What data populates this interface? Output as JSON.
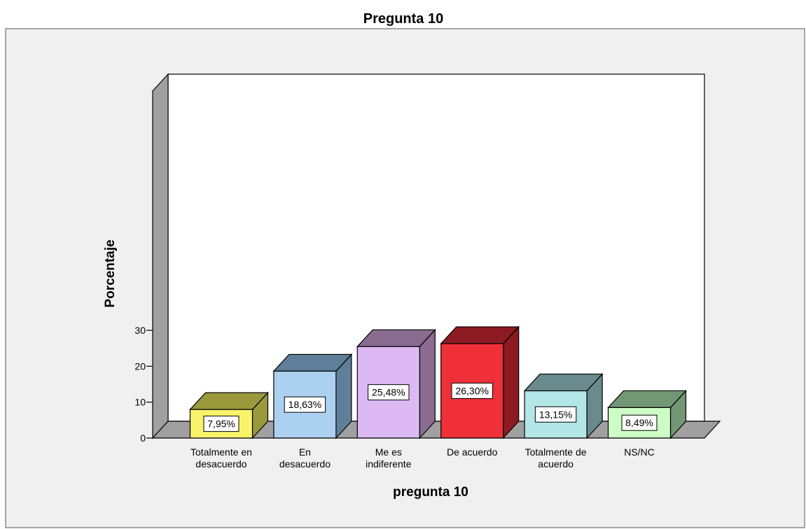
{
  "chart_data": {
    "type": "bar",
    "title": "Pregunta 10",
    "xlabel": "pregunta 10",
    "ylabel": "Porcentaje",
    "ylim": [
      0,
      30
    ],
    "yticks": [
      0,
      10,
      20,
      30
    ],
    "categories": [
      [
        "Totalmente en",
        "desacuerdo"
      ],
      [
        "En",
        "desacuerdo"
      ],
      [
        "Me es",
        "indiferente"
      ],
      [
        "De acuerdo"
      ],
      [
        "Totalmente de",
        "acuerdo"
      ],
      [
        "NS/NC"
      ]
    ],
    "values": [
      7.95,
      18.63,
      25.48,
      26.3,
      13.15,
      8.49
    ],
    "data_labels": [
      "7,95%",
      "18,63%",
      "25,48%",
      "26,30%",
      "13,15%",
      "8,49%"
    ],
    "colors": {
      "front": [
        "#f8f36a",
        "#acd0f0",
        "#dcb9f3",
        "#f03038",
        "#b3e6e6",
        "#cdfdc6"
      ],
      "top": [
        "#9a9a3d",
        "#5e7e99",
        "#8a6c90",
        "#8d1a22",
        "#6a8b8d",
        "#729774"
      ],
      "side": [
        "#9a9a3d",
        "#5e7e99",
        "#8a6c90",
        "#8d1a22",
        "#6a8b8d",
        "#729774"
      ],
      "panel_background": "#f0f0f0",
      "plot_background": "#ffffff",
      "wall": "#a0a0a0",
      "floor": "#a0a0a0"
    },
    "grid": false,
    "legend": "none",
    "style": "3d-bar"
  }
}
